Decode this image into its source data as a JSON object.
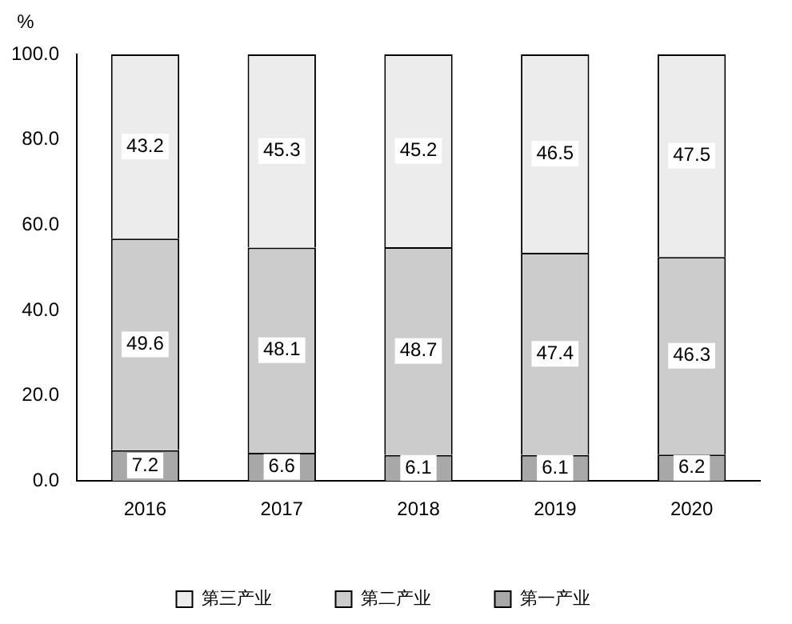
{
  "chart_data": {
    "type": "bar",
    "stacked": true,
    "ylabel": "%",
    "categories": [
      "2016",
      "2017",
      "2018",
      "2019",
      "2020"
    ],
    "series": [
      {
        "name": "第一产业",
        "color": "#a8a8a8",
        "values": [
          7.2,
          6.6,
          6.1,
          6.1,
          6.2
        ]
      },
      {
        "name": "第二产业",
        "color": "#cccccc",
        "values": [
          49.6,
          48.1,
          48.7,
          47.4,
          46.3
        ]
      },
      {
        "name": "第三产业",
        "color": "#ececec",
        "values": [
          43.2,
          45.3,
          45.2,
          46.5,
          47.5
        ]
      }
    ],
    "ylim": [
      0,
      100
    ],
    "yticks": [
      {
        "value": 0,
        "label": "0.0"
      },
      {
        "value": 20,
        "label": "20.0"
      },
      {
        "value": 40,
        "label": "40.0"
      },
      {
        "value": 60,
        "label": "60.0"
      },
      {
        "value": 80,
        "label": "80.0"
      },
      {
        "value": 100,
        "label": "100.0"
      }
    ],
    "grid": false,
    "legend": "bottom",
    "data_labels": true
  }
}
